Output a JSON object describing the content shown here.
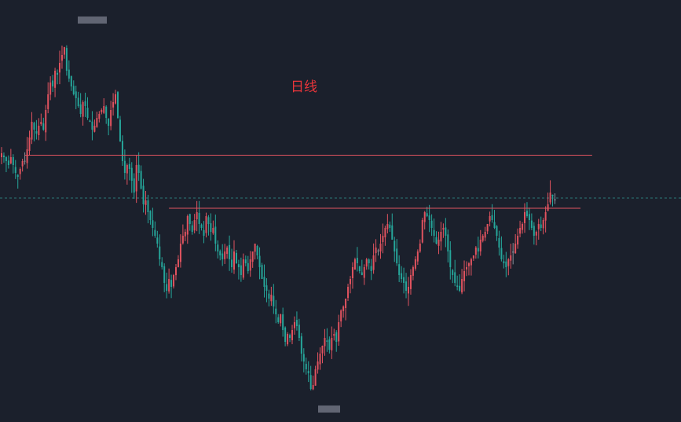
{
  "chart_data": {
    "type": "candlestick",
    "title": "日线",
    "grid": false,
    "up_color": "#e0535f",
    "down_color": "#26a69a",
    "flat_color": "#8a8f99",
    "level_line_color": "#e0535f",
    "guide_line_color": "#2b7a78",
    "background": "#1b202c",
    "ylim": [
      0,
      100
    ],
    "horizontal_levels": [
      {
        "value": 64.5,
        "from_index": 10,
        "to_index": 254
      },
      {
        "value": 51.0,
        "from_index": 72,
        "to_index": 249
      }
    ],
    "dashed_level": 53.6,
    "closes": [
      65,
      64,
      63,
      62,
      64,
      62,
      60,
      59,
      61,
      63,
      63,
      66,
      69,
      73,
      71,
      70,
      72,
      73,
      71,
      76,
      80,
      83,
      82,
      86,
      85,
      88,
      90,
      92,
      86,
      84,
      82,
      80,
      79,
      77,
      75,
      78,
      77,
      74,
      73,
      71,
      72,
      74,
      75,
      76,
      77,
      74,
      72,
      76,
      78,
      80,
      74,
      68,
      63,
      60,
      62,
      61,
      58,
      55,
      62,
      60,
      56,
      52,
      53,
      50,
      48,
      46,
      44,
      42,
      38,
      36,
      32,
      30,
      33,
      31,
      34,
      36,
      38,
      42,
      44,
      45,
      49,
      47,
      45,
      48,
      50,
      47,
      46,
      44,
      49,
      47,
      45,
      46,
      42,
      40,
      39,
      38,
      40,
      41,
      38,
      36,
      40,
      37,
      36,
      34,
      38,
      37,
      35,
      38,
      40,
      42,
      39,
      36,
      33,
      31,
      30,
      28,
      29,
      26,
      24,
      22,
      24,
      20,
      17,
      19,
      18,
      20,
      22,
      21,
      18,
      14,
      12,
      10,
      9,
      5,
      6,
      10,
      12,
      14,
      16,
      18,
      17,
      15,
      18,
      19,
      17,
      22,
      25,
      26,
      28,
      31,
      33,
      36,
      38,
      37,
      35,
      34,
      36,
      38,
      37,
      35,
      39,
      41,
      40,
      42,
      44,
      46,
      47,
      46,
      43,
      40,
      37,
      34,
      33,
      32,
      30,
      31,
      34,
      36,
      38,
      40,
      42,
      48,
      50,
      49,
      48,
      46,
      44,
      42,
      43,
      45,
      46,
      44,
      40,
      36,
      34,
      32,
      31,
      30,
      33,
      35,
      36,
      37,
      38,
      39,
      41,
      40,
      43,
      44,
      45,
      47,
      49,
      48,
      46,
      44,
      41,
      38,
      37,
      36,
      38,
      39,
      40,
      42,
      44,
      46,
      47,
      50,
      49,
      48,
      46,
      44,
      45,
      47,
      46,
      48,
      50,
      52,
      55,
      54,
      53
    ]
  }
}
